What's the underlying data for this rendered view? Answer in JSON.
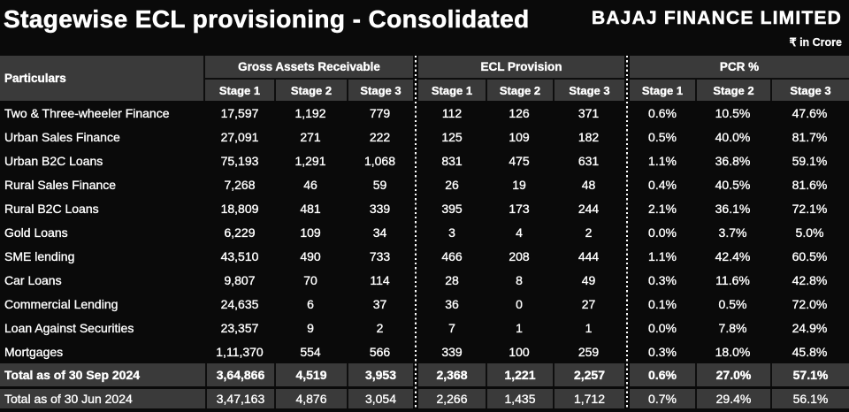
{
  "header": {
    "title": "Stagewise ECL provisioning - Consolidated",
    "brand": "BAJAJ FINANCE LIMITED",
    "unit_note": "₹ in Crore"
  },
  "colors": {
    "background": "#0a0a0a",
    "header_cell": "#3a3a3a",
    "total_row": "#3a3a3a",
    "text": "#ffffff"
  },
  "table": {
    "particulars_label": "Particulars",
    "groups": [
      {
        "label": "Gross Assets Receivable"
      },
      {
        "label": "ECL Provision"
      },
      {
        "label": "PCR %"
      }
    ],
    "stage_labels": [
      "Stage 1",
      "Stage 2",
      "Stage 3"
    ],
    "rows": [
      {
        "name": "Two & Three-wheeler Finance",
        "gross": [
          "17,597",
          "1,192",
          "779"
        ],
        "ecl": [
          "112",
          "126",
          "371"
        ],
        "pcr": [
          "0.6%",
          "10.5%",
          "47.6%"
        ]
      },
      {
        "name": "Urban Sales Finance",
        "gross": [
          "27,091",
          "271",
          "222"
        ],
        "ecl": [
          "125",
          "109",
          "182"
        ],
        "pcr": [
          "0.5%",
          "40.0%",
          "81.7%"
        ]
      },
      {
        "name": "Urban B2C Loans",
        "gross": [
          "75,193",
          "1,291",
          "1,068"
        ],
        "ecl": [
          "831",
          "475",
          "631"
        ],
        "pcr": [
          "1.1%",
          "36.8%",
          "59.1%"
        ]
      },
      {
        "name": "Rural Sales Finance",
        "gross": [
          "7,268",
          "46",
          "59"
        ],
        "ecl": [
          "26",
          "19",
          "48"
        ],
        "pcr": [
          "0.4%",
          "40.5%",
          "81.6%"
        ]
      },
      {
        "name": "Rural B2C Loans",
        "gross": [
          "18,809",
          "481",
          "339"
        ],
        "ecl": [
          "395",
          "173",
          "244"
        ],
        "pcr": [
          "2.1%",
          "36.1%",
          "72.1%"
        ]
      },
      {
        "name": "Gold Loans",
        "gross": [
          "6,229",
          "109",
          "34"
        ],
        "ecl": [
          "3",
          "4",
          "2"
        ],
        "pcr": [
          "0.0%",
          "3.7%",
          "5.0%"
        ]
      },
      {
        "name": "SME lending",
        "gross": [
          "43,510",
          "490",
          "733"
        ],
        "ecl": [
          "466",
          "208",
          "444"
        ],
        "pcr": [
          "1.1%",
          "42.4%",
          "60.5%"
        ]
      },
      {
        "name": "Car Loans",
        "gross": [
          "9,807",
          "70",
          "114"
        ],
        "ecl": [
          "28",
          "8",
          "49"
        ],
        "pcr": [
          "0.3%",
          "11.6%",
          "42.8%"
        ]
      },
      {
        "name": "Commercial Lending",
        "gross": [
          "24,635",
          "6",
          "37"
        ],
        "ecl": [
          "36",
          "0",
          "27"
        ],
        "pcr": [
          "0.1%",
          "0.5%",
          "72.0%"
        ]
      },
      {
        "name": "Loan Against Securities",
        "gross": [
          "23,357",
          "9",
          "2"
        ],
        "ecl": [
          "7",
          "1",
          "1"
        ],
        "pcr": [
          "0.0%",
          "7.8%",
          "24.9%"
        ]
      },
      {
        "name": "Mortgages",
        "gross": [
          "1,11,370",
          "554",
          "566"
        ],
        "ecl": [
          "339",
          "100",
          "259"
        ],
        "pcr": [
          "0.3%",
          "18.0%",
          "45.8%"
        ]
      }
    ],
    "totals": [
      {
        "name": "Total as of 30 Sep 2024",
        "gross": [
          "3,64,866",
          "4,519",
          "3,953"
        ],
        "ecl": [
          "2,368",
          "1,221",
          "2,257"
        ],
        "pcr": [
          "0.6%",
          "27.0%",
          "57.1%"
        ]
      },
      {
        "name": "Total as of 30 Jun 2024",
        "gross": [
          "3,47,163",
          "4,876",
          "3,054"
        ],
        "ecl": [
          "2,266",
          "1,435",
          "1,712"
        ],
        "pcr": [
          "0.7%",
          "29.4%",
          "56.1%"
        ]
      }
    ]
  }
}
